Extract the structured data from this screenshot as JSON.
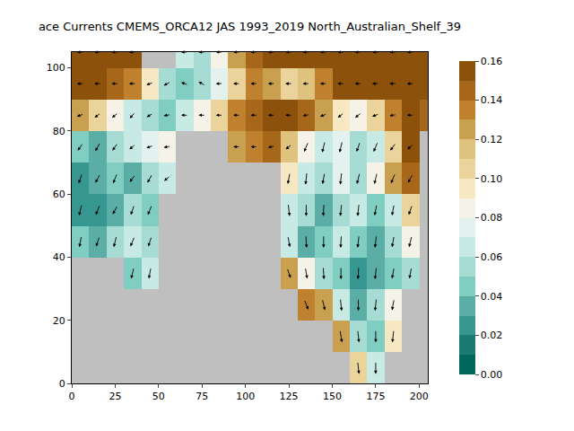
{
  "chart_data": {
    "type": "heatmap",
    "title": "ace Currents CMEMS_ORCA12 JAS 1993_2019 North_Australian_Shelf_39",
    "x": [
      5,
      15,
      25,
      35,
      45,
      55,
      65,
      75,
      85,
      95,
      105,
      115,
      125,
      135,
      145,
      155,
      165,
      175,
      185,
      195,
      205
    ],
    "y": [
      5,
      15,
      25,
      35,
      45,
      55,
      65,
      75,
      85,
      95,
      105
    ],
    "values": [
      [
        null,
        null,
        null,
        null,
        null,
        null,
        null,
        null,
        null,
        null,
        null,
        null,
        null,
        null,
        null,
        null,
        0.1,
        0.06,
        null,
        null,
        null
      ],
      [
        null,
        null,
        null,
        null,
        null,
        null,
        null,
        null,
        null,
        null,
        null,
        null,
        null,
        null,
        null,
        0.12,
        0.05,
        0.04,
        0.09,
        null,
        null
      ],
      [
        null,
        null,
        null,
        null,
        null,
        null,
        null,
        null,
        null,
        null,
        null,
        null,
        null,
        0.13,
        0.12,
        0.06,
        0.03,
        0.05,
        0.08,
        null,
        null
      ],
      [
        null,
        null,
        null,
        0.04,
        0.06,
        null,
        null,
        null,
        null,
        null,
        null,
        null,
        0.12,
        0.08,
        0.05,
        0.04,
        0.02,
        0.03,
        0.04,
        0.05,
        null
      ],
      [
        0.04,
        0.03,
        0.05,
        0.06,
        0.05,
        null,
        null,
        null,
        null,
        null,
        null,
        null,
        0.06,
        0.03,
        0.04,
        0.06,
        0.04,
        0.03,
        0.05,
        0.08,
        null
      ],
      [
        0.02,
        0.02,
        0.03,
        0.05,
        0.04,
        null,
        null,
        null,
        null,
        null,
        null,
        null,
        0.06,
        0.05,
        0.03,
        0.05,
        0.06,
        0.04,
        0.06,
        0.1,
        null
      ],
      [
        0.02,
        0.03,
        0.04,
        0.03,
        0.05,
        0.06,
        null,
        null,
        null,
        null,
        null,
        null,
        0.09,
        0.06,
        0.05,
        0.07,
        0.05,
        0.08,
        0.12,
        0.14,
        null
      ],
      [
        0.04,
        0.03,
        0.05,
        0.06,
        0.07,
        0.08,
        null,
        null,
        null,
        0.12,
        0.13,
        0.14,
        0.11,
        0.08,
        0.06,
        0.07,
        0.05,
        0.06,
        0.1,
        0.15,
        null
      ],
      [
        0.12,
        0.1,
        0.08,
        0.06,
        0.05,
        0.04,
        0.06,
        0.08,
        0.1,
        0.13,
        0.14,
        0.15,
        0.15,
        0.14,
        0.12,
        0.09,
        0.08,
        0.1,
        0.13,
        0.15,
        0.14
      ],
      [
        0.15,
        0.15,
        0.14,
        0.13,
        0.09,
        0.05,
        0.04,
        0.05,
        0.07,
        0.1,
        0.13,
        0.12,
        0.1,
        0.11,
        0.13,
        0.15,
        0.16,
        0.16,
        0.16,
        0.16,
        0.16
      ],
      [
        0.16,
        0.16,
        0.15,
        0.16,
        null,
        null,
        0.06,
        0.05,
        0.08,
        0.12,
        0.14,
        0.16,
        0.16,
        0.16,
        0.16,
        0.16,
        0.16,
        0.16,
        0.15,
        0.16,
        0.16
      ]
    ],
    "arrow_u": [
      [
        null,
        null,
        null,
        null,
        null,
        null,
        null,
        null,
        null,
        null,
        null,
        null,
        null,
        null,
        null,
        null,
        0.2,
        0.0,
        null,
        null,
        null
      ],
      [
        null,
        null,
        null,
        null,
        null,
        null,
        null,
        null,
        null,
        null,
        null,
        null,
        null,
        null,
        null,
        0.3,
        0.2,
        0.0,
        -0.2,
        null,
        null
      ],
      [
        null,
        null,
        null,
        null,
        null,
        null,
        null,
        null,
        null,
        null,
        null,
        null,
        null,
        0.6,
        0.4,
        0.2,
        0.0,
        -0.2,
        -0.3,
        null,
        null
      ],
      [
        null,
        null,
        null,
        -0.4,
        -0.3,
        null,
        null,
        null,
        null,
        null,
        null,
        null,
        0.5,
        0.3,
        0.1,
        0.0,
        -0.1,
        -0.2,
        -0.3,
        -0.3,
        null
      ],
      [
        -0.3,
        -0.5,
        -0.4,
        -0.6,
        -0.5,
        null,
        null,
        null,
        null,
        null,
        null,
        null,
        0.3,
        0.1,
        0.0,
        -0.1,
        -0.2,
        -0.2,
        -0.3,
        -0.4,
        null
      ],
      [
        -0.4,
        -0.6,
        -0.7,
        -0.5,
        -0.6,
        null,
        null,
        null,
        null,
        null,
        null,
        null,
        0.2,
        0.0,
        -0.1,
        -0.2,
        -0.2,
        -0.3,
        -0.3,
        -0.5,
        null
      ],
      [
        -0.5,
        -0.7,
        -0.6,
        -0.8,
        -0.7,
        -0.9,
        null,
        null,
        null,
        null,
        null,
        null,
        -0.3,
        -0.2,
        -0.3,
        -0.2,
        -0.4,
        -0.4,
        -0.6,
        -0.7,
        null
      ],
      [
        -0.8,
        -0.7,
        -0.8,
        -0.9,
        -1.0,
        -1.0,
        null,
        null,
        null,
        -1.0,
        -1.0,
        -1.0,
        -0.9,
        -0.6,
        -0.4,
        -0.4,
        -0.5,
        -0.6,
        -0.8,
        -0.9,
        null
      ],
      [
        -1.0,
        -0.9,
        -0.9,
        -0.8,
        -0.9,
        -1.0,
        -1.0,
        -1.0,
        -1.0,
        -1.0,
        -1.0,
        -1.0,
        -1.0,
        -1.0,
        -1.0,
        -0.9,
        -0.9,
        -1.0,
        -1.0,
        -1.0,
        -1.0
      ],
      [
        -1.0,
        -1.0,
        -1.0,
        -1.0,
        -1.0,
        -1.0,
        -1.0,
        -1.0,
        -1.0,
        -1.0,
        -1.0,
        -1.0,
        -1.0,
        -1.0,
        -1.0,
        -1.0,
        -1.0,
        -1.0,
        -1.0,
        -1.0,
        -1.0
      ],
      [
        -1.0,
        -1.0,
        -1.0,
        -1.0,
        null,
        null,
        -1.0,
        -1.0,
        -1.0,
        -1.0,
        -1.0,
        -1.0,
        -1.0,
        -1.0,
        -1.0,
        -1.0,
        -1.0,
        -1.0,
        -1.0,
        -1.0,
        -1.0
      ]
    ],
    "arrow_v": [
      [
        null,
        null,
        null,
        null,
        null,
        null,
        null,
        null,
        null,
        null,
        null,
        null,
        null,
        null,
        null,
        null,
        -1.0,
        -1.0,
        null,
        null,
        null
      ],
      [
        null,
        null,
        null,
        null,
        null,
        null,
        null,
        null,
        null,
        null,
        null,
        null,
        null,
        null,
        null,
        -1.0,
        -1.0,
        -1.0,
        -1.0,
        null,
        null
      ],
      [
        null,
        null,
        null,
        null,
        null,
        null,
        null,
        null,
        null,
        null,
        null,
        null,
        null,
        -0.8,
        -0.9,
        -1.0,
        -1.0,
        -1.0,
        -0.9,
        null,
        null
      ],
      [
        null,
        null,
        null,
        -0.9,
        -0.9,
        null,
        null,
        null,
        null,
        null,
        null,
        null,
        -0.8,
        -0.9,
        -1.0,
        -1.0,
        -1.0,
        -1.0,
        -0.9,
        -0.9,
        null
      ],
      [
        -0.9,
        -0.8,
        -0.9,
        -0.8,
        -0.8,
        null,
        null,
        null,
        null,
        null,
        null,
        null,
        -0.9,
        -1.0,
        -1.0,
        -1.0,
        -1.0,
        -1.0,
        -0.9,
        -0.9,
        null
      ],
      [
        -0.9,
        -0.8,
        -0.7,
        -0.8,
        -0.8,
        null,
        null,
        null,
        null,
        null,
        null,
        null,
        -1.0,
        -1.0,
        -1.0,
        -1.0,
        -1.0,
        -0.9,
        -0.9,
        -0.8,
        null
      ],
      [
        -0.8,
        -0.7,
        -0.8,
        -0.6,
        -0.7,
        -0.4,
        null,
        null,
        null,
        null,
        null,
        null,
        -0.9,
        -1.0,
        -0.9,
        -1.0,
        -0.9,
        -0.9,
        -0.8,
        -0.7,
        null
      ],
      [
        -0.6,
        -0.7,
        -0.6,
        -0.4,
        -0.2,
        -0.1,
        null,
        null,
        null,
        0.0,
        0.0,
        -0.1,
        -0.4,
        -0.8,
        -0.9,
        -0.9,
        -0.8,
        -0.8,
        -0.6,
        -0.4,
        null
      ],
      [
        -0.2,
        -0.4,
        -0.4,
        -0.5,
        -0.3,
        -0.1,
        0.0,
        0.0,
        0.0,
        0.0,
        0.0,
        0.0,
        0.0,
        -0.1,
        -0.2,
        -0.4,
        -0.4,
        -0.2,
        -0.1,
        0.0,
        0.0
      ],
      [
        0.0,
        0.0,
        0.0,
        0.0,
        -0.2,
        -0.3,
        0.2,
        0.3,
        0.0,
        0.0,
        0.0,
        0.0,
        0.0,
        0.0,
        0.0,
        0.0,
        0.0,
        0.0,
        0.0,
        0.0,
        0.0
      ],
      [
        0.0,
        0.0,
        0.0,
        0.0,
        null,
        null,
        0.0,
        0.0,
        0.0,
        0.0,
        0.0,
        0.0,
        0.0,
        0.0,
        0.0,
        0.0,
        0.0,
        0.0,
        0.0,
        0.0,
        0.0
      ]
    ],
    "xlim": [
      0,
      205
    ],
    "ylim": [
      0,
      105
    ],
    "xticks": [
      0,
      25,
      50,
      75,
      100,
      125,
      150,
      175,
      200
    ],
    "yticks": [
      0,
      20,
      40,
      60,
      80,
      100
    ],
    "colorbar_range": [
      0,
      0.16
    ],
    "colorbar_ticks": [
      {
        "value": 0,
        "label": "0.00"
      },
      {
        "value": 0.02,
        "label": "0.02"
      },
      {
        "value": 0.04,
        "label": "0.04"
      },
      {
        "value": 0.06,
        "label": "0.06"
      },
      {
        "value": 0.08,
        "label": "0.08"
      },
      {
        "value": 0.1,
        "label": "0.10"
      },
      {
        "value": 0.12,
        "label": "0.12"
      },
      {
        "value": 0.14,
        "label": "0.14"
      },
      {
        "value": 0.16,
        "label": "0.16"
      }
    ]
  }
}
